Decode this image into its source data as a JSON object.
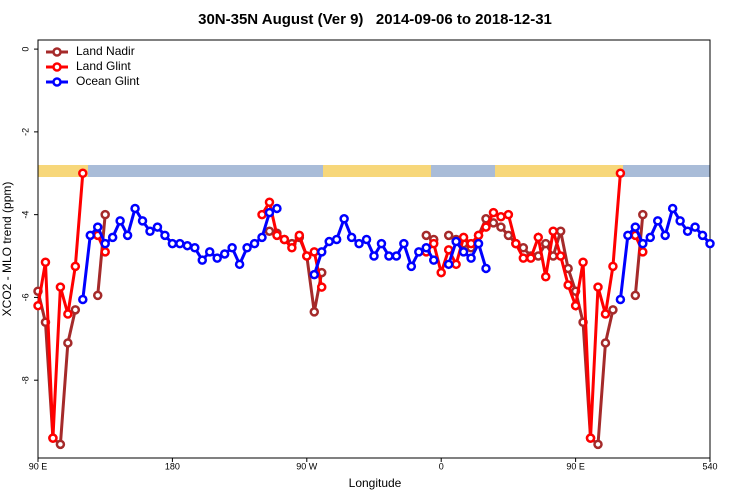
{
  "chart_data": {
    "type": "line",
    "title": "30N-35N August (Ver 9)   2014-09-06 to 2018-12-31",
    "xlabel": "Longitude",
    "ylabel": "XCO2 - MLO trend (ppm)",
    "xlim": [
      90,
      540
    ],
    "ylim": [
      -9.88,
      0.22
    ],
    "xticks": [
      {
        "value": 90,
        "label": "90 E"
      },
      180,
      {
        "value": 270,
        "label": "90 W"
      },
      {
        "value": 360,
        "label": "0"
      },
      {
        "value": 450,
        "label": "90 E"
      },
      540
    ],
    "yticks": [
      0,
      -2,
      -4,
      -6,
      -8
    ],
    "legend": "top-left",
    "x": [
      90,
      95,
      100,
      105,
      110,
      115,
      120,
      125,
      130,
      135,
      140,
      145,
      150,
      155,
      160,
      165,
      170,
      175,
      180,
      185,
      190,
      195,
      200,
      205,
      210,
      215,
      220,
      225,
      230,
      235,
      240,
      245,
      250,
      255,
      260,
      265,
      270,
      275,
      280,
      285,
      290,
      295,
      300,
      305,
      310,
      315,
      320,
      325,
      330,
      335,
      340,
      345,
      350,
      355,
      360,
      365,
      370,
      375,
      380,
      385,
      390,
      395,
      400,
      405,
      410,
      415,
      420,
      425,
      430,
      435,
      440,
      445,
      450,
      455,
      460,
      465,
      470,
      475,
      480,
      485,
      490,
      495,
      500,
      505,
      510,
      515,
      520,
      525,
      530,
      535,
      540
    ],
    "series": [
      {
        "name": "Land Nadir",
        "color": "#a52a2a",
        "values": [
          -5.85,
          -6.6,
          -9.4,
          -9.55,
          -7.1,
          -6.3,
          null,
          null,
          -5.95,
          -4.0,
          null,
          null,
          null,
          null,
          null,
          null,
          null,
          null,
          null,
          null,
          null,
          null,
          null,
          null,
          null,
          null,
          null,
          null,
          null,
          null,
          null,
          -4.4,
          -4.45,
          -4.6,
          -4.7,
          -4.55,
          -5.0,
          -6.35,
          -5.4,
          null,
          null,
          null,
          null,
          null,
          null,
          null,
          null,
          null,
          null,
          null,
          null,
          null,
          -4.5,
          -4.6,
          null,
          -4.5,
          -4.6,
          -4.7,
          -4.8,
          -4.5,
          -4.1,
          -4.2,
          -4.3,
          -4.5,
          -4.7,
          -4.8,
          -5.0,
          -5.0,
          -4.7,
          -5.0,
          -4.4,
          -5.3,
          -5.85,
          -6.6,
          -9.4,
          -9.55,
          -7.1,
          -6.3,
          null,
          null,
          -5.95,
          -4.0,
          null,
          null,
          null,
          null,
          null,
          null,
          null,
          null,
          null
        ]
      },
      {
        "name": "Land Glint",
        "color": "#ff0000",
        "values": [
          -6.2,
          -5.15,
          -9.4,
          -5.75,
          -6.4,
          -5.25,
          -3.0,
          null,
          -4.5,
          -4.9,
          null,
          null,
          null,
          null,
          null,
          null,
          null,
          null,
          null,
          null,
          null,
          null,
          null,
          null,
          null,
          null,
          null,
          null,
          null,
          null,
          -4.0,
          -3.7,
          -4.5,
          -4.6,
          -4.8,
          -4.5,
          -5.0,
          -4.9,
          -5.75,
          null,
          null,
          null,
          null,
          null,
          null,
          null,
          null,
          null,
          null,
          null,
          null,
          null,
          -4.9,
          -4.7,
          -5.4,
          -4.85,
          -5.2,
          -4.55,
          -4.7,
          -4.5,
          -4.3,
          -3.95,
          -4.05,
          -4.0,
          -4.7,
          -5.05,
          -5.05,
          -4.55,
          -5.5,
          -4.4,
          -5.0,
          -5.7,
          -6.2,
          -5.15,
          -9.4,
          -5.75,
          -6.4,
          -5.25,
          -3.0,
          null,
          -4.5,
          -4.9,
          null,
          null,
          null,
          null,
          null,
          null,
          null,
          null,
          null
        ]
      },
      {
        "name": "Ocean Glint",
        "color": "#0000ff",
        "values": [
          null,
          null,
          null,
          null,
          null,
          null,
          -6.05,
          -4.5,
          -4.3,
          -4.7,
          -4.55,
          -4.15,
          -4.5,
          -3.85,
          -4.15,
          -4.4,
          -4.3,
          -4.5,
          -4.7,
          -4.7,
          -4.75,
          -4.8,
          -5.1,
          -4.9,
          -5.05,
          -4.95,
          -4.8,
          -5.2,
          -4.8,
          -4.7,
          -4.55,
          -3.95,
          -3.85,
          null,
          null,
          null,
          null,
          -5.45,
          -4.9,
          -4.65,
          -4.6,
          -4.1,
          -4.55,
          -4.7,
          -4.6,
          -5.0,
          -4.7,
          -5.0,
          -5.0,
          -4.7,
          -5.25,
          -4.9,
          -4.8,
          -5.1,
          null,
          -5.2,
          -4.65,
          -4.9,
          -5.05,
          -4.7,
          -5.3,
          null,
          null,
          null,
          null,
          null,
          null,
          null,
          null,
          null,
          null,
          null,
          null,
          null,
          null,
          null,
          null,
          null,
          -6.05,
          -4.5,
          -4.3,
          -4.7,
          -4.55,
          -4.15,
          -4.5,
          -3.85,
          -4.15,
          -4.4,
          -4.3,
          -4.5,
          -4.7
        ]
      }
    ]
  }
}
